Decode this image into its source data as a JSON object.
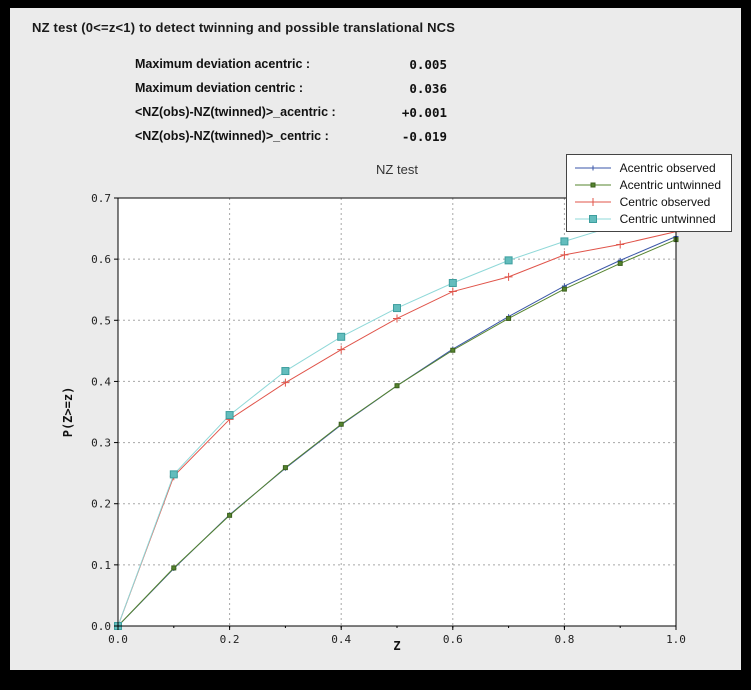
{
  "window": {
    "outer_bg": "#000000",
    "panel_bg": "#ebebeb"
  },
  "header": {
    "title": "NZ test (0<=z<1) to detect twinning and possible translational NCS"
  },
  "stats": {
    "rows": [
      {
        "label": "Maximum deviation acentric :",
        "value": "0.005"
      },
      {
        "label": "Maximum deviation centric :",
        "value": "0.036"
      },
      {
        "label": "<NZ(obs)-NZ(twinned)>_acentric :",
        "value": "+0.001"
      },
      {
        "label": "<NZ(obs)-NZ(twinned)>_centric :",
        "value": "-0.019"
      }
    ]
  },
  "chart_data": {
    "type": "line",
    "title": "NZ test",
    "xlabel": "Z",
    "ylabel": "P(Z>=z)",
    "xlim": [
      0.0,
      1.0
    ],
    "ylim": [
      0.0,
      0.7
    ],
    "x_ticks_labeled": [
      0.0,
      0.2,
      0.4,
      0.6,
      0.8,
      1.0
    ],
    "y_ticks": [
      0.0,
      0.1,
      0.2,
      0.3,
      0.4,
      0.5,
      0.6,
      0.7
    ],
    "grid": "dotted",
    "grid_color": "#a8a8a8",
    "frame_color": "#000000",
    "plot_bg": "#ffffff",
    "legend_position": "top-right-outside",
    "x": [
      0.0,
      0.1,
      0.2,
      0.3,
      0.4,
      0.5,
      0.6,
      0.7,
      0.8,
      0.9,
      1.0
    ],
    "series": [
      {
        "name": "Acentric observed",
        "color": "#3a56a8",
        "marker": "plus",
        "marker_size": 2.5,
        "values": [
          0.0,
          0.094,
          0.182,
          0.258,
          0.329,
          0.393,
          0.453,
          0.506,
          0.556,
          0.598,
          0.637
        ]
      },
      {
        "name": "Acentric untwinned",
        "color": "#55842e",
        "marker": "square",
        "marker_size": 2,
        "marker_fill": "#55842e",
        "marker_edge": "#3c611e",
        "values": [
          0.0,
          0.095,
          0.181,
          0.259,
          0.33,
          0.393,
          0.451,
          0.503,
          0.551,
          0.593,
          0.632
        ]
      },
      {
        "name": "Centric observed",
        "color": "#e0544a",
        "marker": "plus",
        "marker_size": 4,
        "values": [
          0.0,
          0.245,
          0.338,
          0.398,
          0.452,
          0.503,
          0.547,
          0.571,
          0.607,
          0.624,
          0.645
        ]
      },
      {
        "name": "Centric untwinned",
        "color": "#8fd8d8",
        "marker": "square",
        "marker_size": 3.5,
        "marker_fill": "#63bdbd",
        "marker_edge": "#3d9e9e",
        "values": [
          0.0,
          0.248,
          0.345,
          0.417,
          0.473,
          0.52,
          0.561,
          0.598,
          0.629,
          0.657,
          0.683
        ]
      }
    ]
  }
}
